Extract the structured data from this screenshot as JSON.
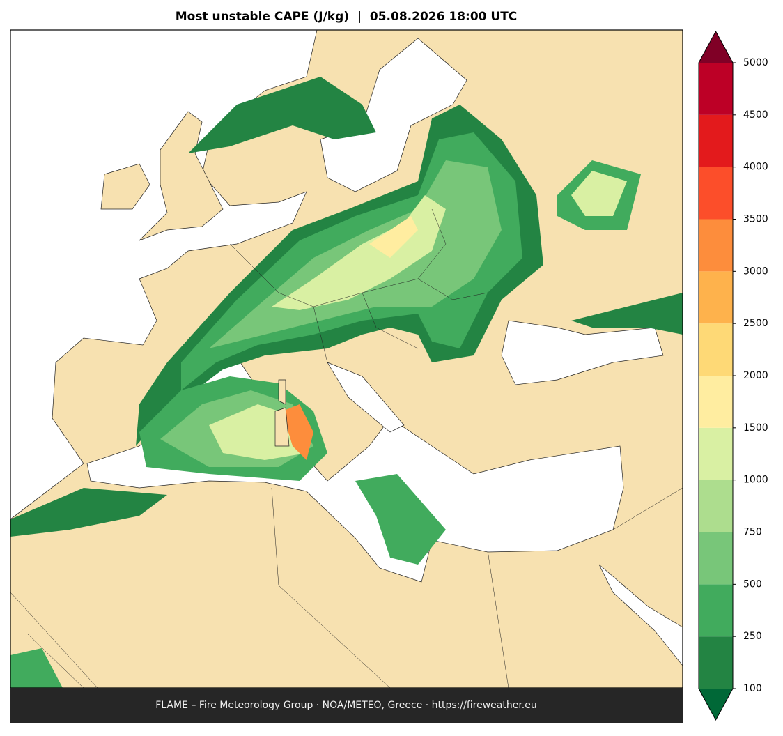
{
  "title": "Most unstable CAPE (J/kg)  |  05.08.2026 18:00 UTC",
  "footer": "FLAME – Fire Meteorology Group · NOA/METEO, Greece · https://fireweather.eu",
  "colorbar": {
    "ticks": [
      100,
      250,
      500,
      750,
      1000,
      1500,
      2000,
      2500,
      3000,
      3500,
      4000,
      4500,
      5000
    ],
    "colors": [
      "#238443",
      "#41ab5d",
      "#78c679",
      "#addd8e",
      "#d9f0a3",
      "#ffeda0",
      "#fed976",
      "#feb24c",
      "#fd8d3c",
      "#fc4e2a",
      "#e31a1c",
      "#bd0026"
    ],
    "under_color": "#006837",
    "over_color": "#800026"
  }
}
